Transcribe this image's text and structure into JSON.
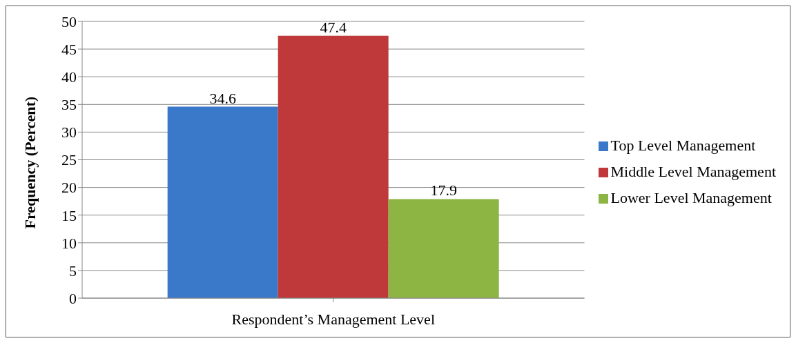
{
  "chart_data": {
    "type": "bar",
    "ylabel": "Frequency (Percent)",
    "categories": [
      "Respondent’s Management Level"
    ],
    "series": [
      {
        "name": "Top Level Management",
        "color": "#3a78c9",
        "values": [
          34.6
        ]
      },
      {
        "name": "Middle Level Management",
        "color": "#c0393a",
        "values": [
          47.4
        ]
      },
      {
        "name": "Lower Level Management",
        "color": "#8db544",
        "values": [
          17.9
        ]
      }
    ],
    "ylim": [
      0,
      50
    ],
    "yticks": [
      0,
      5,
      10,
      15,
      20,
      25,
      30,
      35,
      40,
      45,
      50
    ],
    "grid": "y",
    "legend": "right",
    "data_labels": true
  }
}
